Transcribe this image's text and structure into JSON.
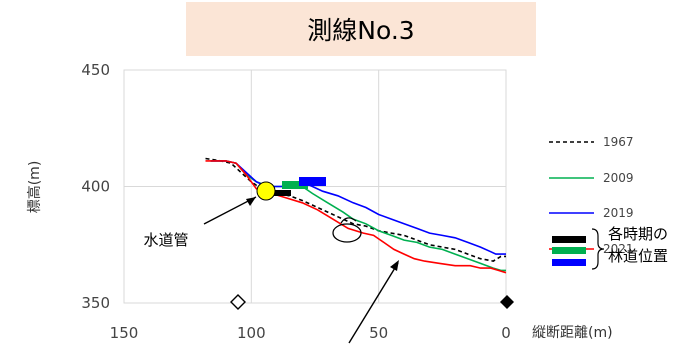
{
  "chart_data": {
    "type": "line",
    "title": "測線No.3",
    "xlabel": "縦断距離(m)",
    "ylabel": "標高(m)",
    "xlim": [
      150,
      0
    ],
    "ylim": [
      350,
      450
    ],
    "x_ticks": [
      "150",
      "100",
      "50",
      "0"
    ],
    "y_ticks": [
      "450",
      "400",
      "350"
    ],
    "grid": true,
    "legend_position": "right",
    "series": [
      {
        "name": "1967",
        "color": "#000000",
        "dash": true,
        "points": [
          [
            118,
            412
          ],
          [
            112,
            411
          ],
          [
            108,
            410
          ],
          [
            104,
            406
          ],
          [
            100,
            402
          ],
          [
            96,
            399
          ],
          [
            90,
            397
          ],
          [
            85,
            396
          ],
          [
            80,
            394
          ],
          [
            76,
            392
          ],
          [
            72,
            390
          ],
          [
            66,
            387
          ],
          [
            60,
            384
          ],
          [
            55,
            383
          ],
          [
            50,
            381
          ],
          [
            45,
            380
          ],
          [
            40,
            379
          ],
          [
            35,
            377
          ],
          [
            30,
            375
          ],
          [
            25,
            374
          ],
          [
            20,
            373
          ],
          [
            15,
            371
          ],
          [
            10,
            369
          ],
          [
            5,
            368
          ],
          [
            2,
            370
          ],
          [
            0,
            370
          ]
        ]
      },
      {
        "name": "2009",
        "color": "#00b050",
        "dash": false,
        "points": [
          [
            116,
            411
          ],
          [
            110,
            411
          ],
          [
            106,
            410
          ],
          [
            102,
            405
          ],
          [
            98,
            402
          ],
          [
            93,
            400
          ],
          [
            88,
            400
          ],
          [
            84,
            401
          ],
          [
            80,
            400
          ],
          [
            76,
            397
          ],
          [
            70,
            393
          ],
          [
            64,
            389
          ],
          [
            60,
            386
          ],
          [
            55,
            384
          ],
          [
            50,
            381
          ],
          [
            45,
            379
          ],
          [
            40,
            377
          ],
          [
            35,
            376
          ],
          [
            30,
            374
          ],
          [
            25,
            373
          ],
          [
            20,
            371
          ],
          [
            15,
            369
          ],
          [
            10,
            367
          ],
          [
            5,
            365
          ],
          [
            2,
            364
          ],
          [
            0,
            364
          ]
        ]
      },
      {
        "name": "2019",
        "color": "#0000ff",
        "dash": false,
        "points": [
          [
            116,
            411
          ],
          [
            110,
            411
          ],
          [
            106,
            410
          ],
          [
            102,
            406
          ],
          [
            98,
            402
          ],
          [
            94,
            400
          ],
          [
            88,
            400
          ],
          [
            84,
            402
          ],
          [
            78,
            401
          ],
          [
            72,
            398
          ],
          [
            66,
            396
          ],
          [
            60,
            393
          ],
          [
            55,
            391
          ],
          [
            50,
            388
          ],
          [
            45,
            386
          ],
          [
            40,
            384
          ],
          [
            35,
            382
          ],
          [
            30,
            380
          ],
          [
            25,
            379
          ],
          [
            20,
            378
          ],
          [
            15,
            376
          ],
          [
            10,
            374
          ],
          [
            6,
            372
          ],
          [
            4,
            371
          ],
          [
            0,
            371
          ]
        ]
      },
      {
        "name": "2021",
        "color": "#ff0000",
        "dash": false,
        "points": [
          [
            118,
            411
          ],
          [
            110,
            411
          ],
          [
            106,
            410
          ],
          [
            102,
            405
          ],
          [
            98,
            399
          ],
          [
            92,
            397
          ],
          [
            86,
            395
          ],
          [
            80,
            393
          ],
          [
            74,
            390
          ],
          [
            68,
            386
          ],
          [
            62,
            382
          ],
          [
            56,
            380
          ],
          [
            52,
            379
          ],
          [
            48,
            376
          ],
          [
            44,
            373
          ],
          [
            40,
            371
          ],
          [
            36,
            369
          ],
          [
            32,
            368
          ],
          [
            26,
            367
          ],
          [
            20,
            366
          ],
          [
            14,
            366
          ],
          [
            10,
            365
          ],
          [
            6,
            365
          ],
          [
            3,
            364
          ],
          [
            0,
            363
          ]
        ]
      }
    ],
    "annotations": {
      "water_pipe": "水道管",
      "forest_road": "各時期の\n林道位置"
    }
  }
}
